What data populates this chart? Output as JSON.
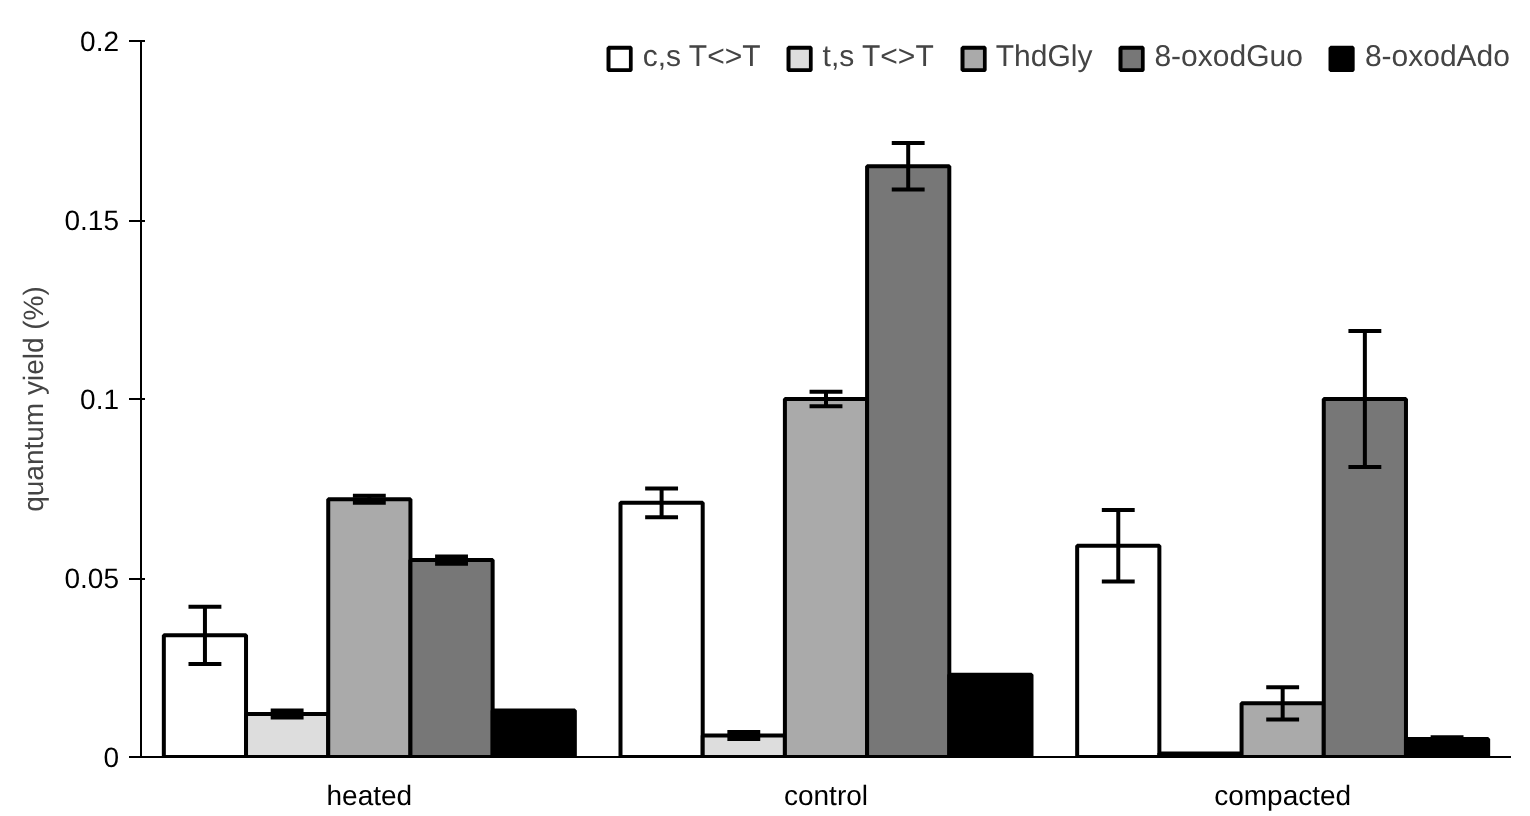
{
  "chart_data": {
    "type": "bar",
    "ylabel": "quantum yield (%)",
    "categories": [
      "heated",
      "control",
      "compacted"
    ],
    "series": [
      {
        "name": "c,s T<>T",
        "color": "#ffffff",
        "values": [
          0.034,
          0.071,
          0.059
        ],
        "errors": [
          0.008,
          0.004,
          0.01
        ]
      },
      {
        "name": "t,s T<>T",
        "color": "#dddddd",
        "values": [
          0.012,
          0.006,
          0.001
        ],
        "errors": [
          0.001,
          0.001,
          null
        ]
      },
      {
        "name": "ThdGly",
        "color": "#aaaaaa",
        "values": [
          0.072,
          0.1,
          0.015
        ],
        "errors": [
          0.001,
          0.002,
          0.0045
        ]
      },
      {
        "name": "8-oxodGuo",
        "color": "#777777",
        "values": [
          0.055,
          0.165,
          0.1
        ],
        "errors": [
          0.001,
          0.0065,
          0.019
        ]
      },
      {
        "name": "8-oxodAdo",
        "color": "#000000",
        "values": [
          0.013,
          0.023,
          0.005
        ],
        "errors": [
          null,
          null,
          0.0005
        ]
      }
    ],
    "ylim": [
      0,
      0.2
    ],
    "yticks": [
      0,
      0.05,
      0.1,
      0.15,
      0.2
    ],
    "grid": false,
    "legend": "top right"
  }
}
